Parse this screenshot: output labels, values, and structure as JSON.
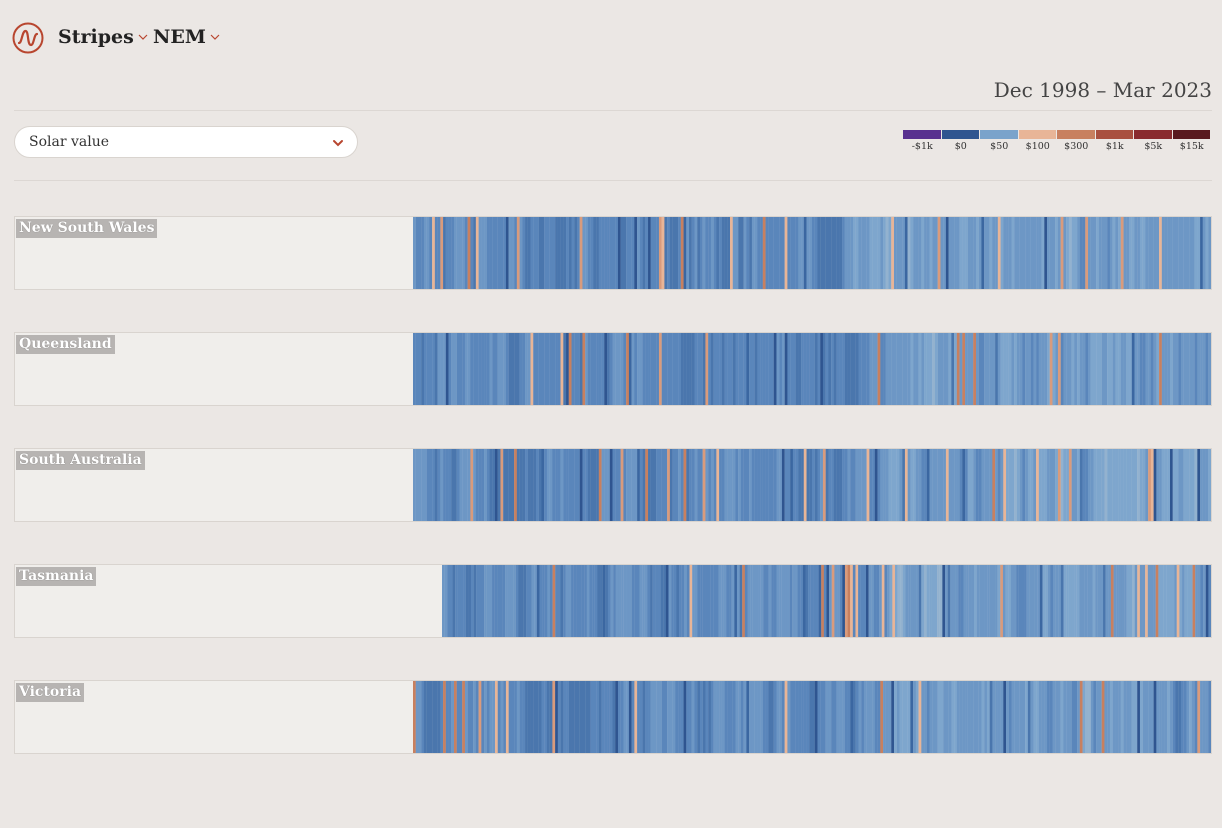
{
  "header": {
    "nav": [
      {
        "label": "Stripes"
      },
      {
        "label": "NEM"
      }
    ],
    "date_range": "Dec 1998 – Mar 2023"
  },
  "controls": {
    "metric_select": {
      "value": "Solar value"
    }
  },
  "legend": {
    "items": [
      {
        "label": "-$1k",
        "color": "#58318f"
      },
      {
        "label": "$0",
        "color": "#2f5590"
      },
      {
        "label": "$50",
        "color": "#7aa3cb"
      },
      {
        "label": "$100",
        "color": "#e8b597"
      },
      {
        "label": "$300",
        "color": "#c8805f"
      },
      {
        "label": "$1k",
        "color": "#a9503f"
      },
      {
        "label": "$5k",
        "color": "#8a2b2e"
      },
      {
        "label": "$15k",
        "color": "#5a1a1f"
      }
    ]
  },
  "regions": [
    {
      "name": "New South Wales"
    },
    {
      "name": "Queensland"
    },
    {
      "name": "South Australia"
    },
    {
      "name": "Tasmania"
    },
    {
      "name": "Victoria"
    }
  ],
  "colors": {
    "accent": "#b8462f",
    "background": "#ebe7e4"
  }
}
